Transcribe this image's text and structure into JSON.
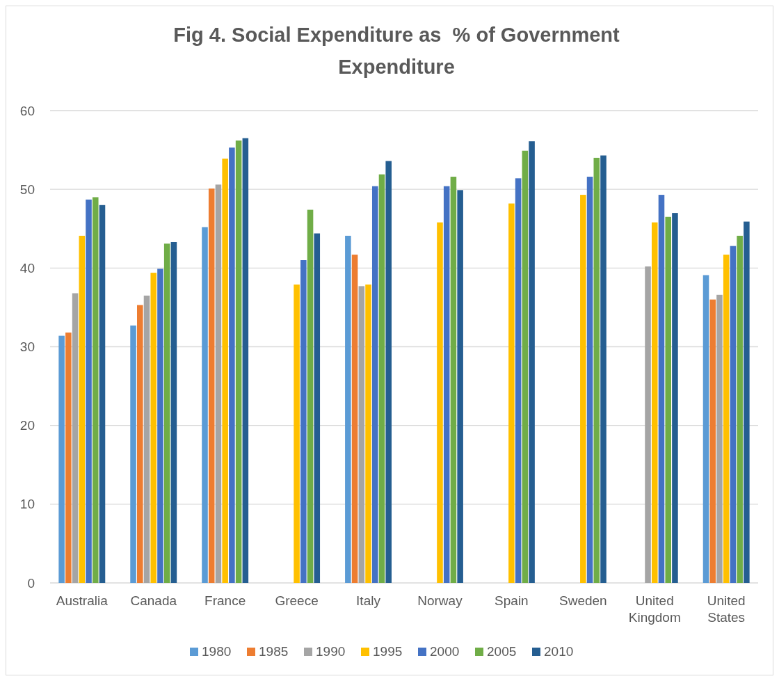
{
  "chart_data": {
    "type": "bar",
    "title": "Fig 4. Social Expenditure as  % of Government Expenditure",
    "categories": [
      "Australia",
      "Canada",
      "France",
      "Greece",
      "Italy",
      "Norway",
      "Spain",
      "Sweden",
      "United Kingdom",
      "United States"
    ],
    "series": [
      {
        "name": "1980",
        "color": "#5b9bd5",
        "values": [
          31.4,
          32.7,
          45.2,
          null,
          44.1,
          null,
          null,
          null,
          null,
          39.1
        ]
      },
      {
        "name": "1985",
        "color": "#ed7d31",
        "values": [
          31.8,
          35.3,
          50.1,
          null,
          41.7,
          null,
          null,
          null,
          null,
          36.0
        ]
      },
      {
        "name": "1990",
        "color": "#a5a5a5",
        "values": [
          36.8,
          36.5,
          50.6,
          null,
          37.7,
          null,
          null,
          null,
          40.2,
          36.6
        ]
      },
      {
        "name": "1995",
        "color": "#ffc000",
        "values": [
          44.1,
          39.4,
          53.9,
          37.9,
          37.9,
          45.8,
          48.2,
          49.3,
          45.8,
          41.7
        ]
      },
      {
        "name": "2000",
        "color": "#4472c4",
        "values": [
          48.7,
          39.9,
          55.3,
          41.0,
          50.4,
          50.4,
          51.4,
          51.6,
          49.3,
          42.8
        ]
      },
      {
        "name": "2005",
        "color": "#70ad47",
        "values": [
          49.0,
          43.1,
          56.2,
          47.4,
          51.9,
          51.6,
          54.9,
          54.0,
          46.5,
          44.1
        ]
      },
      {
        "name": "2010",
        "color": "#255e91",
        "values": [
          48.0,
          43.3,
          56.5,
          44.4,
          53.6,
          49.9,
          56.1,
          54.3,
          47.0,
          45.9
        ]
      }
    ],
    "ylim": [
      0,
      60
    ],
    "yticks": [
      0,
      10,
      20,
      30,
      40,
      50,
      60
    ],
    "grid": "y",
    "legend": "bottom"
  }
}
